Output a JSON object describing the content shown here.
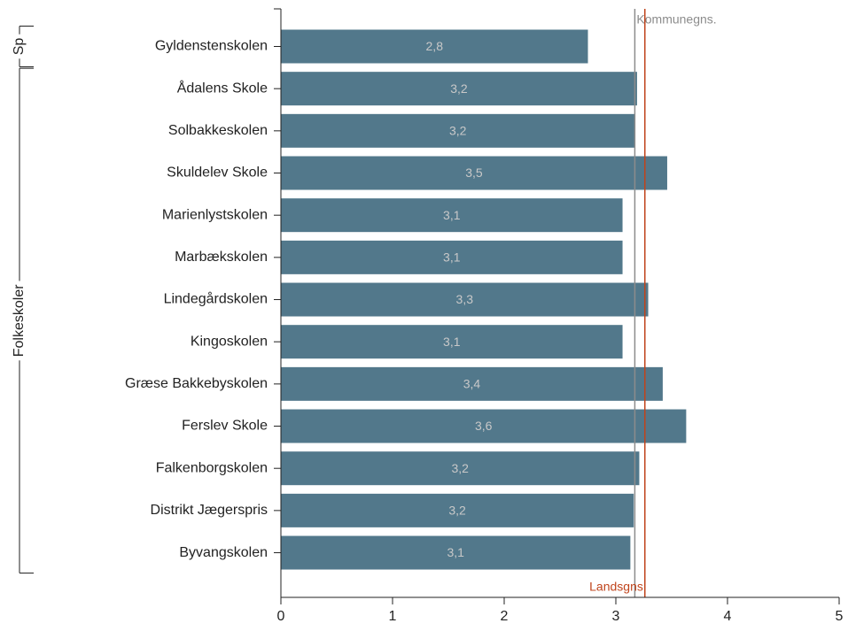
{
  "chart_data": {
    "type": "barh",
    "categories": [
      "Gyldenstenskolen",
      "Ådalens Skole",
      "Solbakkeskolen",
      "Skuldelev Skole",
      "Marienlystskolen",
      "Marbækskolen",
      "Lindegårdskolen",
      "Kingoskolen",
      "Græse Bakkebyskolen",
      "Ferslev Skole",
      "Falkenborgskolen",
      "Distrikt Jægerspris",
      "Byvangskolen"
    ],
    "values": [
      2.75,
      3.19,
      3.17,
      3.46,
      3.06,
      3.06,
      3.29,
      3.06,
      3.42,
      3.63,
      3.21,
      3.16,
      3.13
    ],
    "value_labels": [
      "2,8",
      "3,2",
      "3,2",
      "3,5",
      "3,1",
      "3,1",
      "3,3",
      "3,1",
      "3,4",
      "3,6",
      "3,2",
      "3,2",
      "3,1"
    ],
    "color": "#52788b",
    "xlim": [
      0,
      5
    ],
    "xticks": [
      0,
      1,
      2,
      3,
      4,
      5
    ],
    "groups": [
      {
        "label": "Sp",
        "size": 1
      },
      {
        "label": "Folkeskoler",
        "size": 12
      }
    ],
    "reference_lines": [
      {
        "label": "Kommunegns.",
        "value": 3.17,
        "color": "#8c8c8c",
        "label_position": "top"
      },
      {
        "label": "Landsgns.",
        "value": 3.26,
        "color": "#c0441c",
        "label_position": "bottom"
      }
    ]
  }
}
